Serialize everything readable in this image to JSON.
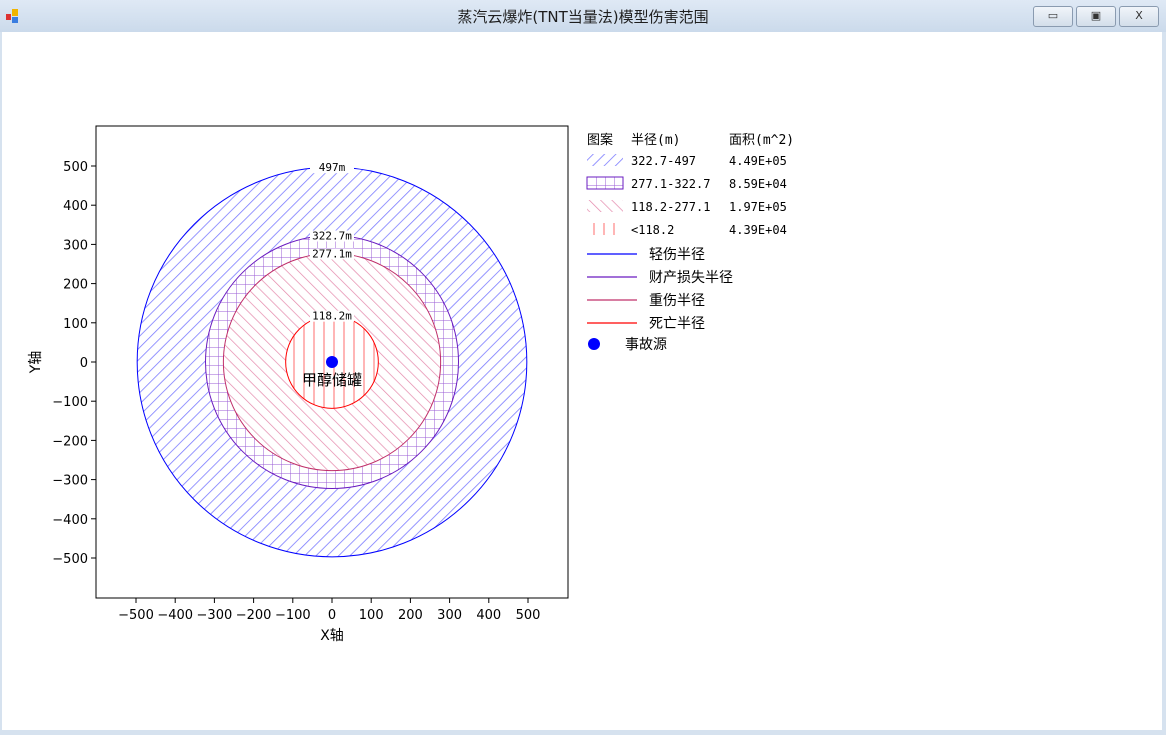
{
  "window": {
    "title": "蒸汽云爆炸(TNT当量法)模型伤害范围",
    "minimize": "▭",
    "maximize": "▣",
    "close": "X"
  },
  "colors": {
    "light_injury": "#0000ff",
    "property_loss": "#6a1bc0",
    "serious_injury": "#c0306a",
    "death": "#ff0000",
    "source": "#0000ff"
  },
  "chart_data": {
    "type": "concentric-circles",
    "xlabel": "X轴",
    "ylabel": "Y轴",
    "xlim": [
      -600,
      600
    ],
    "ylim": [
      -600,
      600
    ],
    "xticks": [
      -500,
      -400,
      -300,
      -200,
      -100,
      0,
      100,
      200,
      300,
      400,
      500
    ],
    "yticks": [
      500,
      400,
      300,
      200,
      100,
      0,
      -100,
      -200,
      -300,
      -400,
      -500
    ],
    "circles": [
      {
        "radius": 497,
        "label": "497m",
        "name": "轻伤半径",
        "color": "#0000ff",
        "pattern": "diag-up"
      },
      {
        "radius": 322.7,
        "label": "322.7m",
        "name": "财产损失半径",
        "color": "#6a1bc0",
        "pattern": "grid"
      },
      {
        "radius": 277.1,
        "label": "277.1m",
        "name": "重伤半径",
        "color": "#c0306a",
        "pattern": "diag-down"
      },
      {
        "radius": 118.2,
        "label": "118.2m",
        "name": "死亡半径",
        "color": "#ff0000",
        "pattern": "vertical"
      }
    ],
    "source": {
      "x": 0,
      "y": 0,
      "label": "甲醇储罐",
      "name": "事故源"
    },
    "legend": {
      "headers": [
        "图案",
        "半径(m)",
        "面积(m^2)"
      ],
      "rows": [
        {
          "range": "322.7-497",
          "area": "4.49E+05"
        },
        {
          "range": "277.1-322.7",
          "area": "8.59E+04"
        },
        {
          "range": "118.2-277.1",
          "area": "1.97E+05"
        },
        {
          "range": "<118.2",
          "area": "4.39E+04"
        }
      ],
      "lines": [
        "轻伤半径",
        "财产损失半径",
        "重伤半径",
        "死亡半径"
      ],
      "source_label": "事故源"
    }
  }
}
